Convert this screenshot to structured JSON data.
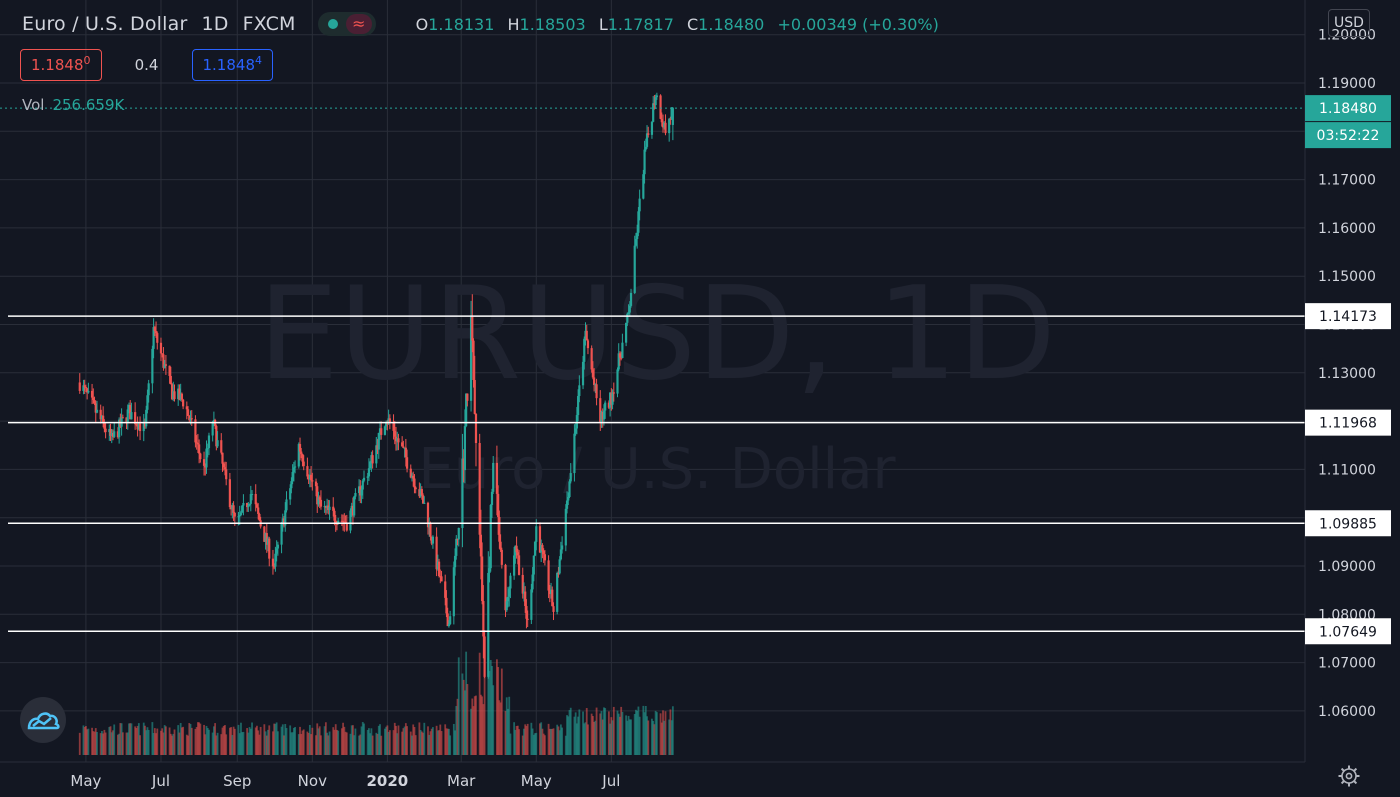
{
  "header": {
    "symbol": "Euro / U.S. Dollar",
    "interval": "1D",
    "exchange": "FXCM",
    "ohlc": {
      "o_label": "O",
      "o": "1.18131",
      "h_label": "H",
      "h": "1.18503",
      "l_label": "L",
      "l": "1.17817",
      "c_label": "C",
      "c": "1.18480",
      "change": "+0.00349 (+0.30%)"
    }
  },
  "quote": {
    "sell": "1.1848",
    "sell_sup": "0",
    "spread": "0.4",
    "buy": "1.1848",
    "buy_sup": "4",
    "sell_color": "#ef5350",
    "buy_color": "#2962ff"
  },
  "volume": {
    "label": "Vol",
    "value": "256.659K"
  },
  "currency_button": "USD",
  "watermark": {
    "line1": "EURUSD, 1D",
    "line2": "Euro / U.S. Dollar"
  },
  "colors": {
    "background": "#131722",
    "grid": "#2a2e39",
    "up": "#26a69a",
    "down": "#ef5350",
    "hline": "#ffffff",
    "text": "#d1d4dc"
  },
  "icons": {
    "logo": "tradingview-cloud-logo-icon",
    "settings": "gear-icon",
    "indicator": "dot-icon",
    "compare": "wave-icon"
  },
  "chart_data": {
    "type": "candlestick",
    "title": "Euro / U.S. Dollar",
    "interval": "1D",
    "y_axis": {
      "ticks": [
        "1.20000",
        "1.19000",
        "1.18000",
        "1.17000",
        "1.16000",
        "1.15000",
        "1.14000",
        "1.13000",
        "1.12000",
        "1.11000",
        "1.10000",
        "1.09000",
        "1.08000",
        "1.07000",
        "1.06000"
      ],
      "range": [
        1.0515,
        1.2005
      ]
    },
    "x_axis": {
      "ticks": [
        "May",
        "Jul",
        "Sep",
        "Nov",
        "2020",
        "Mar",
        "May",
        "Jul"
      ]
    },
    "last_price": "1.18480",
    "countdown": "03:52:22",
    "horizontal_lines": [
      {
        "value": 1.14173,
        "label": "1.14173"
      },
      {
        "value": 1.11968,
        "label": "1.11968"
      },
      {
        "value": 1.09885,
        "label": "1.09885"
      },
      {
        "value": 1.07649,
        "label": "1.07649"
      }
    ],
    "approx_close_path": [
      {
        "date": "2019-04-26",
        "close": 1.128
      },
      {
        "date": "2019-05-22",
        "close": 1.116
      },
      {
        "date": "2019-06-05",
        "close": 1.122
      },
      {
        "date": "2019-06-18",
        "close": 1.118
      },
      {
        "date": "2019-06-25",
        "close": 1.139
      },
      {
        "date": "2019-07-10",
        "close": 1.126
      },
      {
        "date": "2019-07-20",
        "close": 1.124
      },
      {
        "date": "2019-08-05",
        "close": 1.11
      },
      {
        "date": "2019-08-12",
        "close": 1.12
      },
      {
        "date": "2019-08-31",
        "close": 1.098
      },
      {
        "date": "2019-09-12",
        "close": 1.105
      },
      {
        "date": "2019-10-01",
        "close": 1.09
      },
      {
        "date": "2019-10-21",
        "close": 1.115
      },
      {
        "date": "2019-11-08",
        "close": 1.102
      },
      {
        "date": "2019-11-29",
        "close": 1.099
      },
      {
        "date": "2019-12-18",
        "close": 1.111
      },
      {
        "date": "2019-12-31",
        "close": 1.121
      },
      {
        "date": "2020-01-15",
        "close": 1.113
      },
      {
        "date": "2020-02-01",
        "close": 1.102
      },
      {
        "date": "2020-02-20",
        "close": 1.078
      },
      {
        "date": "2020-03-01",
        "close": 1.105
      },
      {
        "date": "2020-03-09",
        "close": 1.14
      },
      {
        "date": "2020-03-20",
        "close": 1.07
      },
      {
        "date": "2020-03-27",
        "close": 1.11
      },
      {
        "date": "2020-04-06",
        "close": 1.08
      },
      {
        "date": "2020-04-14",
        "close": 1.095
      },
      {
        "date": "2020-04-24",
        "close": 1.078
      },
      {
        "date": "2020-05-01",
        "close": 1.098
      },
      {
        "date": "2020-05-15",
        "close": 1.081
      },
      {
        "date": "2020-05-29",
        "close": 1.11
      },
      {
        "date": "2020-06-10",
        "close": 1.138
      },
      {
        "date": "2020-06-22",
        "close": 1.12
      },
      {
        "date": "2020-07-01",
        "close": 1.125
      },
      {
        "date": "2020-07-15",
        "close": 1.142
      },
      {
        "date": "2020-07-28",
        "close": 1.175
      },
      {
        "date": "2020-08-06",
        "close": 1.188
      },
      {
        "date": "2020-08-14",
        "close": 1.18
      },
      {
        "date": "2020-08-20",
        "close": 1.1848
      }
    ]
  }
}
